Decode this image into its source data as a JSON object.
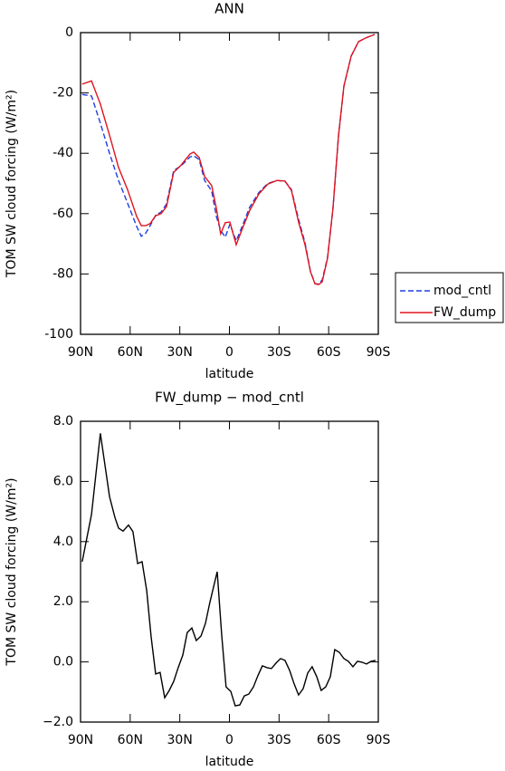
{
  "chart_data": [
    {
      "type": "line",
      "title": "ANN",
      "xlabel": "latitude",
      "ylabel": "TOM SW cloud forcing (W/m²)",
      "x": [
        89,
        83.4,
        78,
        72.5,
        67,
        61.6,
        56,
        53.3,
        50.6,
        47.9,
        44.6,
        41.3,
        38,
        33.7,
        29.3,
        23.8,
        21.6,
        18.3,
        15,
        10.7,
        7.9,
        5.3,
        2.5,
        -0.3,
        -4.1,
        -7.9,
        -12.3,
        -17.8,
        -23.2,
        -28.7,
        -33.6,
        -37.5,
        -41.8,
        -45.7,
        -49,
        -51.7,
        -53.9,
        -56.1,
        -59.3,
        -62.6,
        -65.9,
        -69.2,
        -73.6,
        -78,
        -82.3,
        -87.8
      ],
      "series": [
        {
          "name": "mod_cntl",
          "color": "#1f3fe0",
          "linestyle": "dashed",
          "values": [
            -20.5,
            -21,
            -30,
            -40,
            -49,
            -56.5,
            -64.3,
            -67.5,
            -66.5,
            -64,
            -60.5,
            -59.5,
            -56.8,
            -45.7,
            -44.2,
            -41.2,
            -40.8,
            -42.1,
            -49,
            -52.5,
            -61,
            -65.5,
            -67.8,
            -63.5,
            -69,
            -64,
            -57.8,
            -53,
            -50,
            -49,
            -49.3,
            -52,
            -61.9,
            -69.6,
            -79.2,
            -83.2,
            -83.3,
            -82,
            -74.5,
            -58.5,
            -34.5,
            -17.8,
            -7.8,
            -3,
            -1.8,
            -0.6
          ]
        },
        {
          "name": "FW_dump",
          "color": "#e0141e",
          "linestyle": "solid",
          "values": [
            -17.1,
            -16,
            -23.7,
            -34,
            -44.7,
            -52,
            -61,
            -64,
            -64,
            -63.3,
            -60.7,
            -60,
            -57.7,
            -46.3,
            -44,
            -40.2,
            -39.6,
            -41.4,
            -47.7,
            -50.7,
            -58.3,
            -66.7,
            -63,
            -62.8,
            -70.3,
            -64.9,
            -58.9,
            -53.5,
            -50.2,
            -49,
            -49.2,
            -52.3,
            -62.8,
            -70.3,
            -79.3,
            -83.2,
            -83.5,
            -82.6,
            -74.8,
            -58.3,
            -34.2,
            -17.7,
            -7.8,
            -3,
            -1.8,
            -0.6
          ]
        }
      ],
      "xlim": [
        90,
        -90
      ],
      "xticks": [
        {
          "value": 90,
          "label": "90N"
        },
        {
          "value": 60,
          "label": "60N"
        },
        {
          "value": 30,
          "label": "30N"
        },
        0,
        {
          "value": -30,
          "label": "30S"
        },
        {
          "value": -60,
          "label": "60S"
        },
        {
          "value": -90,
          "label": "90S"
        }
      ],
      "ylim": [
        -100,
        0
      ],
      "yticks": [
        0,
        -20,
        -40,
        -60,
        -80,
        -100
      ],
      "legend": "right"
    },
    {
      "type": "line",
      "title": "FW_dump − mod_cntl",
      "xlabel": "latitude",
      "ylabel": "TOM SW cloud forcing (W/m²)",
      "x": [
        89,
        83.4,
        78,
        72.5,
        69.2,
        67,
        64.3,
        61,
        58.3,
        55.5,
        52.8,
        50,
        47.3,
        44.6,
        41.9,
        39.1,
        36.4,
        33.7,
        31,
        28.2,
        25.5,
        22.7,
        20,
        17.2,
        14.5,
        11.8,
        7.4,
        4.7,
        2,
        -0.8,
        -3.5,
        -6.3,
        -9,
        -11.7,
        -14.5,
        -17.2,
        -19.9,
        -22.7,
        -25.4,
        -28.2,
        -30.9,
        -33.6,
        -36.4,
        -39.1,
        -41.8,
        -44.6,
        -47.3,
        -50,
        -52.8,
        -55.5,
        -58.2,
        -61,
        -63.7,
        -66.4,
        -69.2,
        -71.9,
        -74.7,
        -77.4,
        -80.1,
        -82.9,
        -85.6,
        -88.3
      ],
      "series": [
        {
          "name": null,
          "color": "#000000",
          "linestyle": "solid",
          "values": [
            3.33,
            4.9,
            7.6,
            5.5,
            4.8,
            4.45,
            4.35,
            4.55,
            4.33,
            3.27,
            3.33,
            2.37,
            0.83,
            -0.4,
            -0.35,
            -1.19,
            -0.95,
            -0.65,
            -0.2,
            0.23,
            0.98,
            1.13,
            0.71,
            0.86,
            1.28,
            1.98,
            3.0,
            0.92,
            -0.83,
            -0.98,
            -1.46,
            -1.43,
            -1.13,
            -1.07,
            -0.83,
            -0.46,
            -0.13,
            -0.19,
            -0.22,
            -0.04,
            0.11,
            0.05,
            -0.28,
            -0.73,
            -1.1,
            -0.89,
            -0.37,
            -0.16,
            -0.49,
            -0.95,
            -0.83,
            -0.49,
            0.41,
            0.32,
            0.11,
            0.02,
            -0.16,
            0.02,
            -0.01,
            -0.07,
            0.02,
            0.05
          ]
        }
      ],
      "xlim": [
        90,
        -90
      ],
      "xticks": [
        {
          "value": 90,
          "label": "90N"
        },
        {
          "value": 60,
          "label": "60N"
        },
        {
          "value": 30,
          "label": "30N"
        },
        0,
        {
          "value": -30,
          "label": "30S"
        },
        {
          "value": -60,
          "label": "60S"
        },
        {
          "value": -90,
          "label": "90S"
        }
      ],
      "ylim": [
        -2,
        8
      ],
      "yticks": [
        {
          "value": 8,
          "label": "8.0"
        },
        {
          "value": 6,
          "label": "6.0"
        },
        {
          "value": 4,
          "label": "4.0"
        },
        {
          "value": 2,
          "label": "2.0"
        },
        {
          "value": 0,
          "label": "0.0"
        },
        {
          "value": -2,
          "label": "−2.0"
        }
      ]
    }
  ]
}
